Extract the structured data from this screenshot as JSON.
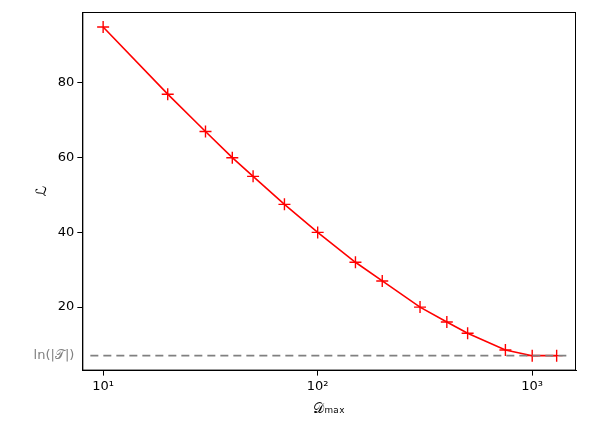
{
  "chart_data": {
    "type": "line",
    "x_label": "𝒟ₘₐₓ",
    "y_label": "ℒ",
    "log": "x",
    "grid": false,
    "series": [
      {
        "name": "ℒ",
        "color": "#ff0000",
        "marker": "plus",
        "line_style": "solid",
        "x": [
          10,
          20,
          30,
          40,
          50,
          70,
          100,
          150,
          200,
          300,
          400,
          500,
          750,
          1000,
          1300
        ],
        "values": [
          95,
          77,
          67,
          60,
          55,
          47.5,
          40,
          32,
          27,
          20,
          16,
          13,
          8.5,
          7,
          7
        ]
      }
    ],
    "reference_line": {
      "value": 7,
      "label": "ln(|𝒯|)",
      "color": "#808080",
      "line_style": "dashed"
    },
    "xlim": [
      8,
      1600
    ],
    "xticks": [
      {
        "value": 10,
        "label": "10¹"
      },
      {
        "value": 100,
        "label": "10²"
      },
      {
        "value": 1000,
        "label": "10³"
      }
    ],
    "ylim": [
      3,
      99
    ],
    "yticks": [
      20,
      40,
      60,
      80
    ]
  }
}
